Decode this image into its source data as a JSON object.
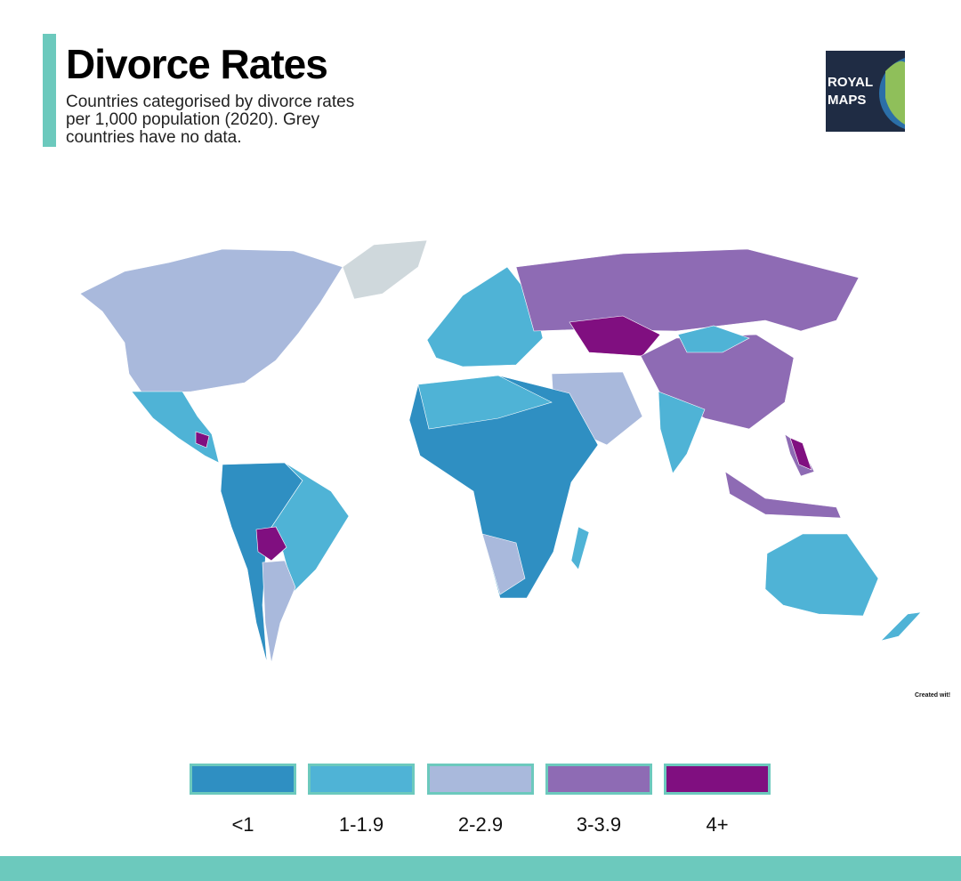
{
  "header": {
    "title": "Divorce Rates",
    "subtitle": [
      "Countries categorised by divorce rates",
      "per 1,000 population (2020). Grey",
      "countries have no data."
    ]
  },
  "logo": {
    "lines": [
      "ROYAL",
      "MAPS"
    ]
  },
  "credit": "Created wit!",
  "legend": {
    "items": [
      {
        "label": "<1",
        "color": "#2f8fc2"
      },
      {
        "label": "1-1.9",
        "color": "#4fb3d6"
      },
      {
        "label": "2-2.9",
        "color": "#a9b9dc"
      },
      {
        "label": "3-3.9",
        "color": "#8e6bb4"
      },
      {
        "label": "4+",
        "color": "#800f80"
      }
    ]
  }
}
